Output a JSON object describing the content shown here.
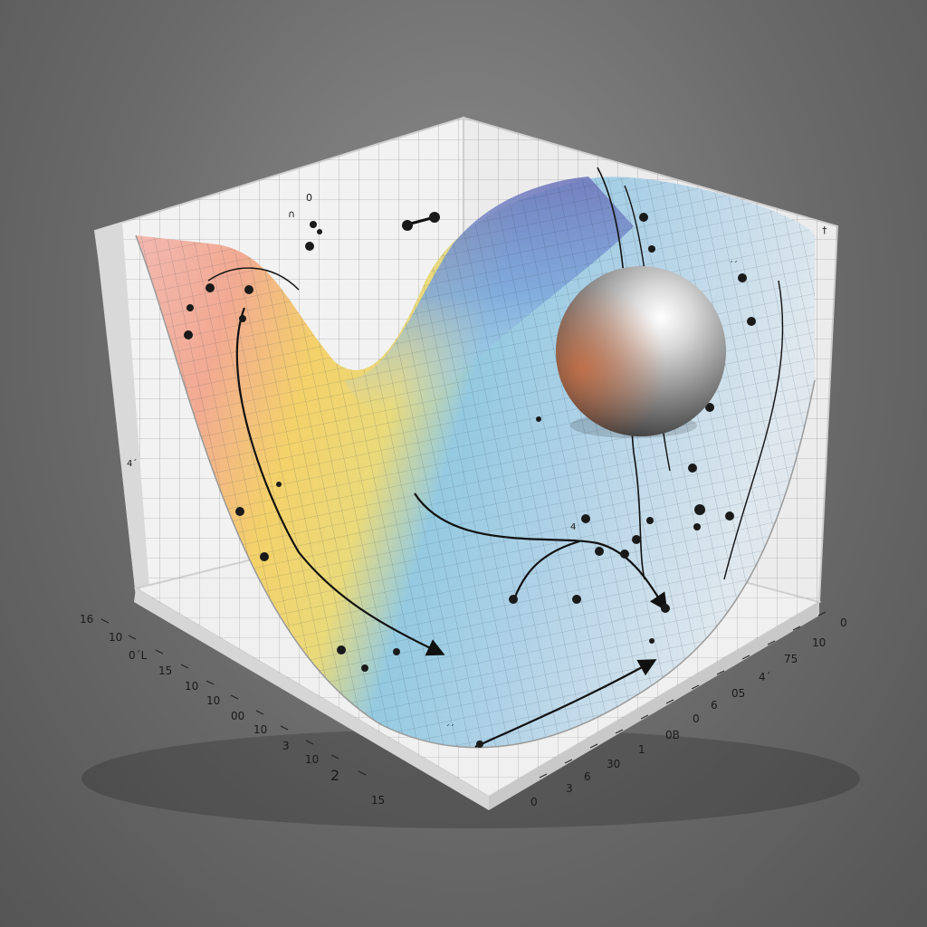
{
  "diagram": {
    "colors": {
      "background": "#6e6e6e",
      "panel": "#f2f2f2",
      "grid": "#2a2a2a",
      "surface_warm": "#f08a7a",
      "surface_yellow": "#f2d35a",
      "surface_cool": "#6fa8dc",
      "surface_deep": "#4a5fb0",
      "ball": "#b5b5b5"
    },
    "icons": [
      "metal-ball",
      "trajectory-arrow",
      "data-point"
    ],
    "left_axis_labels": [
      "16",
      "10",
      "0´L",
      "15",
      "10",
      "10",
      "00",
      "10",
      "3",
      "10",
      "2",
      "15"
    ],
    "right_axis_labels": [
      "0",
      "10",
      "75",
      "4´",
      "05",
      "0",
      "6",
      "0B",
      "1",
      "30",
      "6",
      "3",
      "0"
    ],
    "floor_marks": [
      "´´",
      "4´"
    ],
    "wall_marks": [
      "0",
      "∩",
      "†",
      "´´",
      "4"
    ]
  }
}
